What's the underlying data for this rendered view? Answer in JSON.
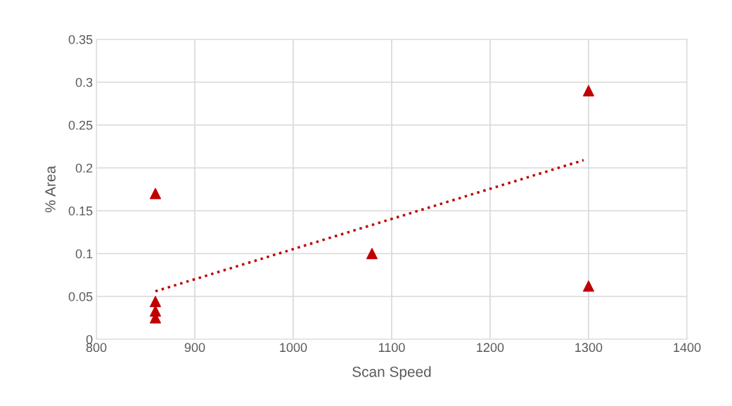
{
  "chart_data": {
    "type": "scatter",
    "xlabel": "Scan Speed",
    "ylabel": "% Area",
    "series": [
      {
        "color": "#c00000",
        "marker": "triangle",
        "x": [
          860,
          860,
          860,
          860,
          1080,
          1300,
          1300
        ],
        "values": [
          0.17,
          0.044,
          0.033,
          0.025,
          0.1,
          0.29,
          0.062
        ]
      },
      {
        "type": "line",
        "color": "#c00000",
        "marker": "none",
        "line_style": "dotted",
        "x": [
          860,
          1295
        ],
        "values": [
          0.056,
          0.209
        ]
      }
    ],
    "xlim": [
      800,
      1400
    ],
    "xticks": [
      800,
      900,
      1000,
      1100,
      1200,
      1300,
      1400
    ],
    "ylim": [
      0,
      0.35
    ],
    "yticks": [
      0,
      0.05,
      0.1,
      0.15,
      0.2,
      0.25,
      0.3,
      0.35
    ],
    "grid": true,
    "legend": false
  }
}
